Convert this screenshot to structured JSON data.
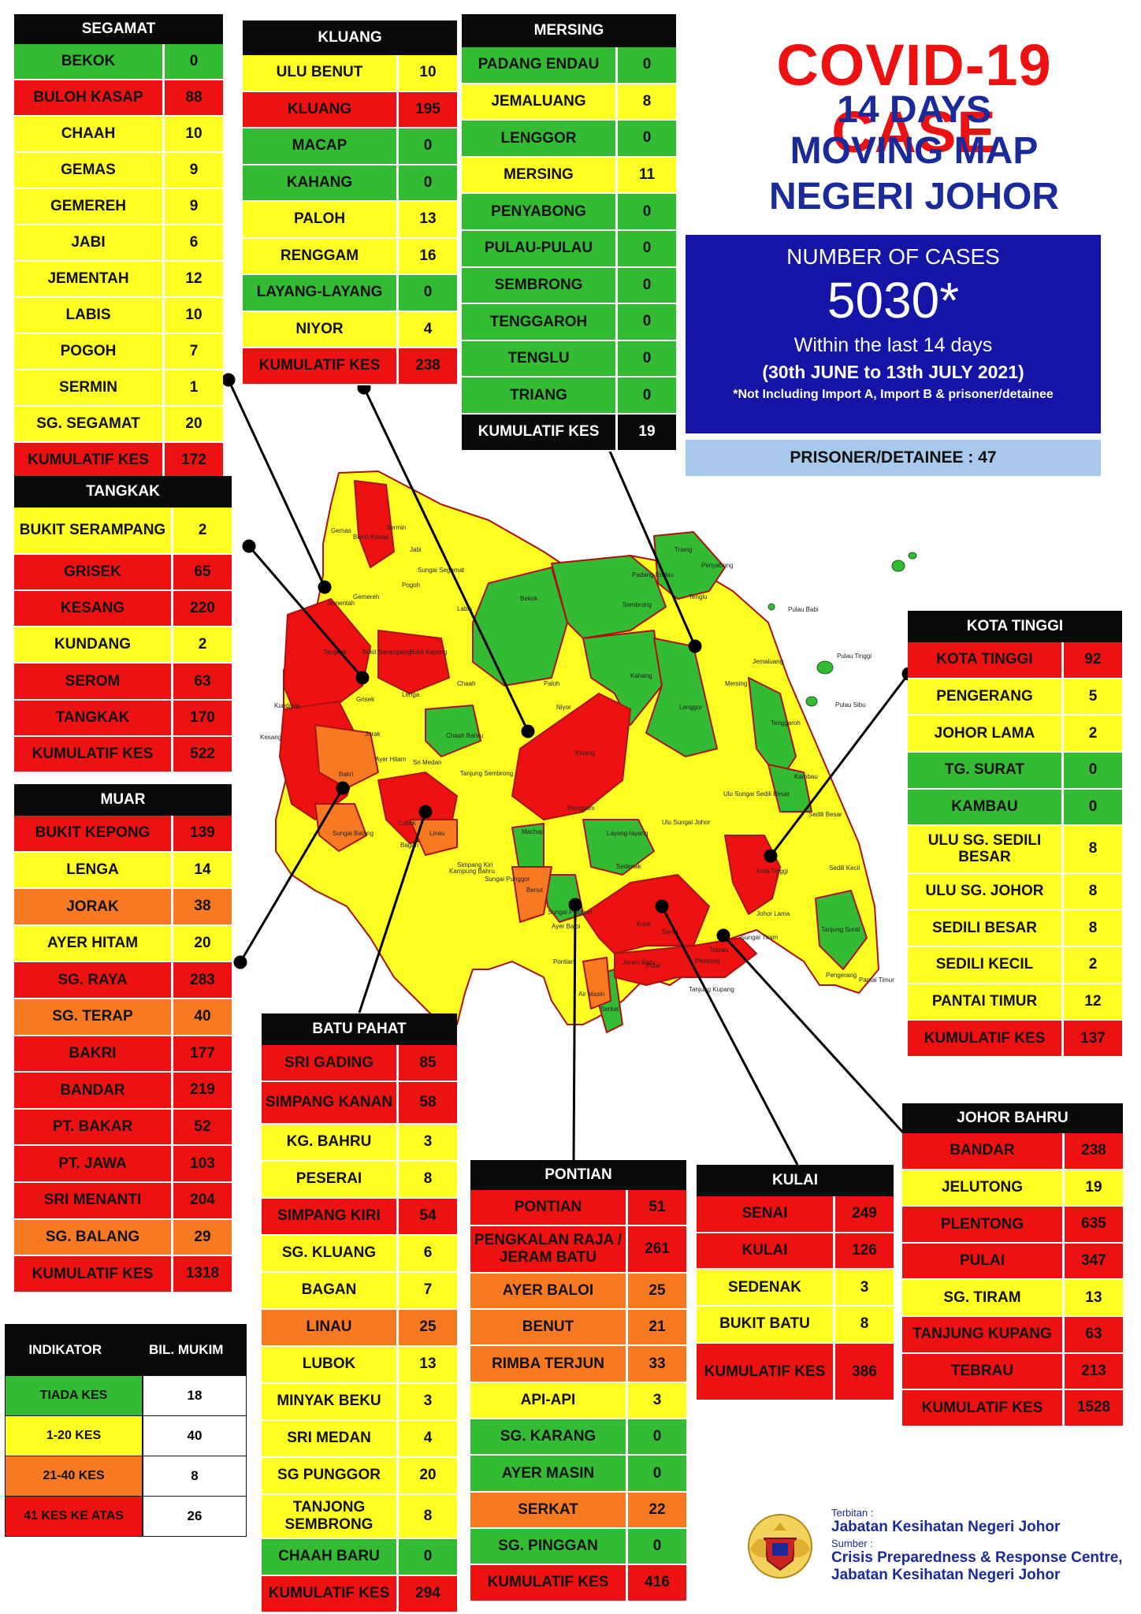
{
  "title": {
    "line1": "COVID-19 CASE",
    "line2": "14 DAYS",
    "line3": "MOVING MAP",
    "line4": "NEGERI JOHOR"
  },
  "summary": {
    "label": "NUMBER OF CASES",
    "total": "5030*",
    "period_text": "Within the last 14 days",
    "date_range": "(30th JUNE to 13th JULY 2021)",
    "note": "*Not Including Import A, Import B & prisoner/detainee",
    "prisoner": "PRISONER/DETAINEE : 47"
  },
  "colors": {
    "none": "#33bb33",
    "low": "#ffff22",
    "mid": "#f77a22",
    "high": "#ee1111",
    "header": "#0a0a0a",
    "title_red": "#ee1111",
    "title_blue": "#1a2a9a",
    "info_box": "#1414a6",
    "prisoner_box": "#a8c8ec"
  },
  "districts": [
    {
      "name": "SEGAMAT",
      "rows": [
        {
          "name": "BEKOK",
          "value": "0",
          "level": "g"
        },
        {
          "name": "BULOH KASAP",
          "value": "88",
          "level": "r"
        },
        {
          "name": "CHAAH",
          "value": "10",
          "level": "y"
        },
        {
          "name": "GEMAS",
          "value": "9",
          "level": "y"
        },
        {
          "name": "GEMEREH",
          "value": "9",
          "level": "y"
        },
        {
          "name": "JABI",
          "value": "6",
          "level": "y"
        },
        {
          "name": "JEMENTAH",
          "value": "12",
          "level": "y"
        },
        {
          "name": "LABIS",
          "value": "10",
          "level": "y"
        },
        {
          "name": "POGOH",
          "value": "7",
          "level": "y"
        },
        {
          "name": "SERMIN",
          "value": "1",
          "level": "y"
        },
        {
          "name": "SG. SEGAMAT",
          "value": "20",
          "level": "y"
        },
        {
          "name": "KUMULATIF KES",
          "value": "172",
          "level": "total"
        }
      ]
    },
    {
      "name": "KLUANG",
      "rows": [
        {
          "name": "ULU BENUT",
          "value": "10",
          "level": "y"
        },
        {
          "name": "KLUANG",
          "value": "195",
          "level": "r"
        },
        {
          "name": "MACAP",
          "value": "0",
          "level": "g"
        },
        {
          "name": "KAHANG",
          "value": "0",
          "level": "g"
        },
        {
          "name": "PALOH",
          "value": "13",
          "level": "y"
        },
        {
          "name": "RENGGAM",
          "value": "16",
          "level": "y"
        },
        {
          "name": "LAYANG-LAYANG",
          "value": "0",
          "level": "g"
        },
        {
          "name": "NIYOR",
          "value": "4",
          "level": "y"
        },
        {
          "name": "KUMULATIF KES",
          "value": "238",
          "level": "total"
        }
      ]
    },
    {
      "name": "MERSING",
      "rows": [
        {
          "name": "PADANG ENDAU",
          "value": "0",
          "level": "g"
        },
        {
          "name": "JEMALUANG",
          "value": "8",
          "level": "y"
        },
        {
          "name": "LENGGOR",
          "value": "0",
          "level": "g"
        },
        {
          "name": "MERSING",
          "value": "11",
          "level": "y"
        },
        {
          "name": "PENYABONG",
          "value": "0",
          "level": "g"
        },
        {
          "name": "PULAU-PULAU",
          "value": "0",
          "level": "g"
        },
        {
          "name": "SEMBRONG",
          "value": "0",
          "level": "g"
        },
        {
          "name": "TENGGAROH",
          "value": "0",
          "level": "g"
        },
        {
          "name": "TENGLU",
          "value": "0",
          "level": "g"
        },
        {
          "name": "TRIANG",
          "value": "0",
          "level": "g"
        },
        {
          "name": "KUMULATIF KES",
          "value": "19",
          "level": "dark"
        }
      ]
    },
    {
      "name": "TANGKAK",
      "rows": [
        {
          "name": "BUKIT SERAMPANG",
          "value": "2",
          "level": "y"
        },
        {
          "name": "GRISEK",
          "value": "65",
          "level": "r"
        },
        {
          "name": "KESANG",
          "value": "220",
          "level": "r"
        },
        {
          "name": "KUNDANG",
          "value": "2",
          "level": "y"
        },
        {
          "name": "SEROM",
          "value": "63",
          "level": "r"
        },
        {
          "name": "TANGKAK",
          "value": "170",
          "level": "r"
        },
        {
          "name": "KUMULATIF KES",
          "value": "522",
          "level": "total"
        }
      ]
    },
    {
      "name": "MUAR",
      "rows": [
        {
          "name": "BUKIT KEPONG",
          "value": "139",
          "level": "r"
        },
        {
          "name": "LENGA",
          "value": "14",
          "level": "y"
        },
        {
          "name": "JORAK",
          "value": "38",
          "level": "o"
        },
        {
          "name": "AYER HITAM",
          "value": "20",
          "level": "y"
        },
        {
          "name": "SG. RAYA",
          "value": "283",
          "level": "r"
        },
        {
          "name": "SG. TERAP",
          "value": "40",
          "level": "o"
        },
        {
          "name": "BAKRI",
          "value": "177",
          "level": "r"
        },
        {
          "name": "BANDAR",
          "value": "219",
          "level": "r"
        },
        {
          "name": "PT. BAKAR",
          "value": "52",
          "level": "r"
        },
        {
          "name": "PT. JAWA",
          "value": "103",
          "level": "r"
        },
        {
          "name": "SRI MENANTI",
          "value": "204",
          "level": "r"
        },
        {
          "name": "SG. BALANG",
          "value": "29",
          "level": "o"
        },
        {
          "name": "KUMULATIF KES",
          "value": "1318",
          "level": "total"
        }
      ]
    },
    {
      "name": "KOTA TINGGI",
      "rows": [
        {
          "name": "KOTA TINGGI",
          "value": "92",
          "level": "r"
        },
        {
          "name": "PENGERANG",
          "value": "5",
          "level": "y"
        },
        {
          "name": "JOHOR LAMA",
          "value": "2",
          "level": "y"
        },
        {
          "name": "TG. SURAT",
          "value": "0",
          "level": "g"
        },
        {
          "name": "KAMBAU",
          "value": "0",
          "level": "g"
        },
        {
          "name": "ULU SG. SEDILI BESAR",
          "value": "8",
          "level": "y"
        },
        {
          "name": "ULU  SG. JOHOR",
          "value": "8",
          "level": "y"
        },
        {
          "name": "SEDILI BESAR",
          "value": "8",
          "level": "y"
        },
        {
          "name": "SEDILI KECIL",
          "value": "2",
          "level": "y"
        },
        {
          "name": "PANTAI TIMUR",
          "value": "12",
          "level": "y"
        },
        {
          "name": "KUMULATIF KES",
          "value": "137",
          "level": "total"
        }
      ]
    },
    {
      "name": "BATU PAHAT",
      "rows": [
        {
          "name": "SRI GADING",
          "value": "85",
          "level": "r"
        },
        {
          "name": "SIMPANG KANAN",
          "value": "58",
          "level": "r"
        },
        {
          "name": "KG. BAHRU",
          "value": "3",
          "level": "y"
        },
        {
          "name": "PESERAI",
          "value": "8",
          "level": "y"
        },
        {
          "name": "SIMPANG KIRI",
          "value": "54",
          "level": "r"
        },
        {
          "name": "SG. KLUANG",
          "value": "6",
          "level": "y"
        },
        {
          "name": "BAGAN",
          "value": "7",
          "level": "y"
        },
        {
          "name": "LINAU",
          "value": "25",
          "level": "o"
        },
        {
          "name": "LUBOK",
          "value": "13",
          "level": "y"
        },
        {
          "name": "MINYAK BEKU",
          "value": "3",
          "level": "y"
        },
        {
          "name": "SRI MEDAN",
          "value": "4",
          "level": "y"
        },
        {
          "name": "SG PUNGGOR",
          "value": "20",
          "level": "y"
        },
        {
          "name": "TANJONG SEMBRONG",
          "value": "8",
          "level": "y"
        },
        {
          "name": "CHAAH BARU",
          "value": "0",
          "level": "g"
        },
        {
          "name": "KUMULATIF KES",
          "value": "294",
          "level": "total"
        }
      ]
    },
    {
      "name": "PONTIAN",
      "rows": [
        {
          "name": "PONTIAN",
          "value": "51",
          "level": "r"
        },
        {
          "name": "PENGKALAN RAJA / JERAM BATU",
          "value": "261",
          "level": "r"
        },
        {
          "name": "AYER BALOI",
          "value": "25",
          "level": "o"
        },
        {
          "name": "BENUT",
          "value": "21",
          "level": "o"
        },
        {
          "name": "RIMBA TERJUN",
          "value": "33",
          "level": "o"
        },
        {
          "name": "API-API",
          "value": "3",
          "level": "y"
        },
        {
          "name": "SG. KARANG",
          "value": "0",
          "level": "g"
        },
        {
          "name": "AYER MASIN",
          "value": "0",
          "level": "g"
        },
        {
          "name": "SERKAT",
          "value": "22",
          "level": "o"
        },
        {
          "name": "SG. PINGGAN",
          "value": "0",
          "level": "g"
        },
        {
          "name": "KUMULATIF KES",
          "value": "416",
          "level": "total"
        }
      ]
    },
    {
      "name": "KULAI",
      "rows": [
        {
          "name": "SENAI",
          "value": "249",
          "level": "r"
        },
        {
          "name": "KULAI",
          "value": "126",
          "level": "r"
        },
        {
          "name": "SEDENAK",
          "value": "3",
          "level": "y"
        },
        {
          "name": "BUKIT BATU",
          "value": "8",
          "level": "y"
        },
        {
          "name": "KUMULATIF KES",
          "value": "386",
          "level": "total"
        }
      ]
    },
    {
      "name": "JOHOR BAHRU",
      "rows": [
        {
          "name": "BANDAR",
          "value": "238",
          "level": "r"
        },
        {
          "name": "JELUTONG",
          "value": "19",
          "level": "y"
        },
        {
          "name": "PLENTONG",
          "value": "635",
          "level": "r"
        },
        {
          "name": "PULAI",
          "value": "347",
          "level": "r"
        },
        {
          "name": "SG. TIRAM",
          "value": "13",
          "level": "y"
        },
        {
          "name": "TANJUNG KUPANG",
          "value": "63",
          "level": "r"
        },
        {
          "name": "TEBRAU",
          "value": "213",
          "level": "r"
        },
        {
          "name": "KUMULATIF KES",
          "value": "1528",
          "level": "total"
        }
      ]
    }
  ],
  "legend": {
    "col1": "INDIKATOR",
    "col2": "BIL. MUKIM",
    "rows": [
      {
        "label": "TIADA KES",
        "value": "18",
        "level": "g"
      },
      {
        "label": "1-20 KES",
        "value": "40",
        "level": "y"
      },
      {
        "label": "21-40 KES",
        "value": "8",
        "level": "o"
      },
      {
        "label": "41 KES KE ATAS",
        "value": "26",
        "level": "r"
      }
    ]
  },
  "credits": {
    "published_label": "Terbitan :",
    "publisher": "Jabatan Kesihatan Negeri Johor",
    "source_label": "Sumber :",
    "source_line1": "Crisis Preparedness & Response Centre,",
    "source_line2": "Jabatan Kesihatan Negeri Johor"
  },
  "map_labels": [
    "Gemas",
    "Buloh Kasap",
    "Sermin",
    "Jabi",
    "Sungai Segamat",
    "Pogoh",
    "Labis",
    "Bekok",
    "Jementah",
    "Gemereh",
    "Bukit Serampang",
    "Bukit Kepong",
    "Tangkak",
    "Grisek",
    "Kundang",
    "Kesang",
    "Lenga",
    "Jorak",
    "Chaah",
    "Paloh",
    "Niyor",
    "Kahang",
    "Lenggor",
    "Mersing",
    "Jemaluang",
    "Tenggaroh",
    "Penyabong",
    "Tenglu",
    "Triang",
    "Pulau Babi",
    "Pulau Tinggi",
    "Pulau Sibu",
    "Chaah Bahru",
    "Sri Medan",
    "Ayer Hitam",
    "Tanjung Sembrong",
    "Kluang",
    "Renggam",
    "Machap",
    "Layang-layang",
    "Ulu Sungai Johor",
    "Ulu Sungai Sedili Besar",
    "Kambau",
    "Sedili Besar",
    "Sedili Kecil",
    "Kota Tinggi",
    "Johor Lama",
    "Tanjung Surat",
    "Pengerang",
    "Pantai Timur",
    "Sedenak",
    "Kulai",
    "Senai",
    "Benut",
    "Sungai Pinggan",
    "Ayer Baloi",
    "Pontian",
    "Serkat",
    "Air Masin",
    "Jeram Batu",
    "Tanjung Kupang",
    "Sungai Tiram",
    "Tebrau",
    "Plentong",
    "Pulai",
    "Linau",
    "Lubok",
    "Bagan",
    "Simpang Kiri",
    "Sungai Balang",
    "Kampung Bahru",
    "Sungai Punggor",
    "Bakri",
    "Sembrong",
    "Padang Endau"
  ]
}
